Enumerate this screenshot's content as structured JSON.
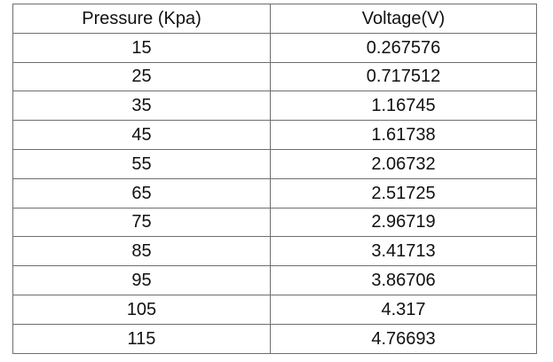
{
  "table": {
    "headers": [
      "Pressure (Kpa)",
      "Voltage(V)"
    ],
    "rows": [
      [
        "15",
        "0.267576"
      ],
      [
        "25",
        "0.717512"
      ],
      [
        "35",
        "1.16745"
      ],
      [
        "45",
        "1.61738"
      ],
      [
        "55",
        "2.06732"
      ],
      [
        "65",
        "2.51725"
      ],
      [
        "75",
        "2.96719"
      ],
      [
        "85",
        "3.41713"
      ],
      [
        "95",
        "3.86706"
      ],
      [
        "105",
        "4.317"
      ],
      [
        "115",
        "4.76693"
      ]
    ]
  },
  "colors": {
    "border": "#6e6e6e",
    "text": "#111111",
    "background": "#ffffff"
  }
}
